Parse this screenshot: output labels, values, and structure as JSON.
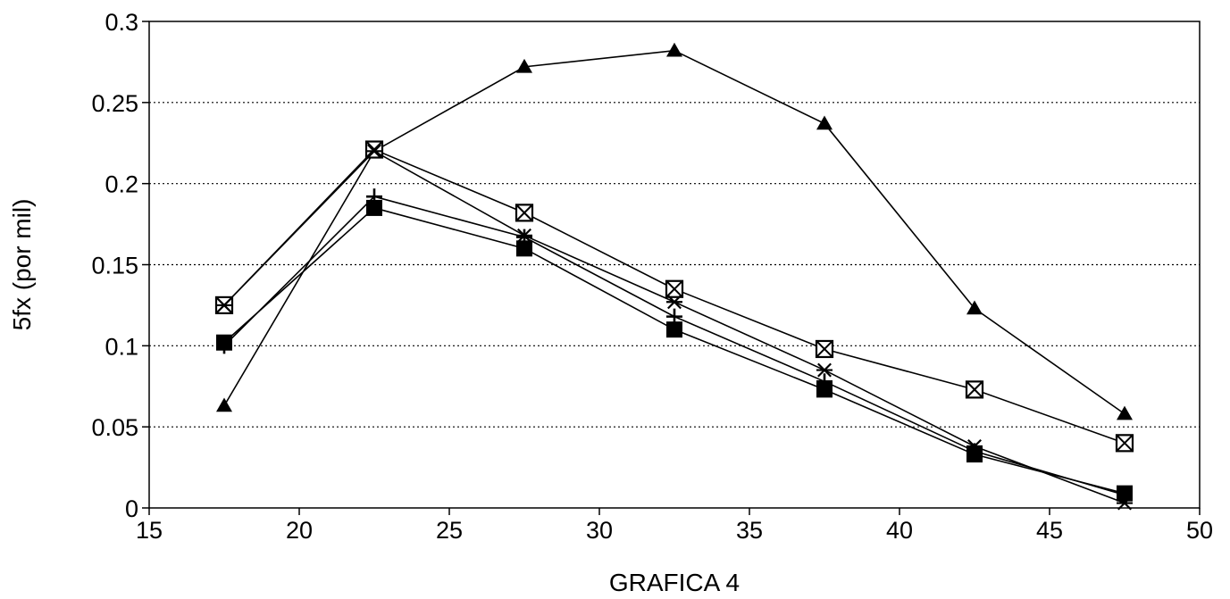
{
  "chart_data": {
    "type": "line",
    "title": "",
    "xlabel": "GRAFICA 4",
    "ylabel": "5fx (por mil)",
    "xlim": [
      15,
      50
    ],
    "ylim": [
      0,
      0.3
    ],
    "x_ticks": [
      "15",
      "20",
      "25",
      "30",
      "35",
      "40",
      "45",
      "50"
    ],
    "y_ticks": [
      "0",
      "0.05",
      "0.1",
      "0.15",
      "0.2",
      "0.25",
      "0.3"
    ],
    "grid": "horizontal-dotted",
    "legend": "none",
    "x": [
      17.5,
      22.5,
      27.5,
      32.5,
      37.5,
      42.5,
      47.5
    ],
    "series": [
      {
        "marker": "triangle",
        "values": [
          0.063,
          0.22,
          0.272,
          0.282,
          0.237,
          0.123,
          0.058
        ]
      },
      {
        "marker": "boxed-x",
        "values": [
          0.125,
          0.221,
          0.182,
          0.135,
          0.098,
          0.073,
          0.04
        ]
      },
      {
        "marker": "asterisk",
        "values": [
          0.125,
          0.22,
          0.168,
          0.127,
          0.085,
          0.038,
          0.003
        ]
      },
      {
        "marker": "plus",
        "values": [
          0.1,
          0.192,
          0.167,
          0.118,
          0.078,
          0.035,
          0.008
        ]
      },
      {
        "marker": "filled-square",
        "values": [
          0.102,
          0.185,
          0.16,
          0.11,
          0.073,
          0.033,
          0.009
        ]
      }
    ]
  }
}
